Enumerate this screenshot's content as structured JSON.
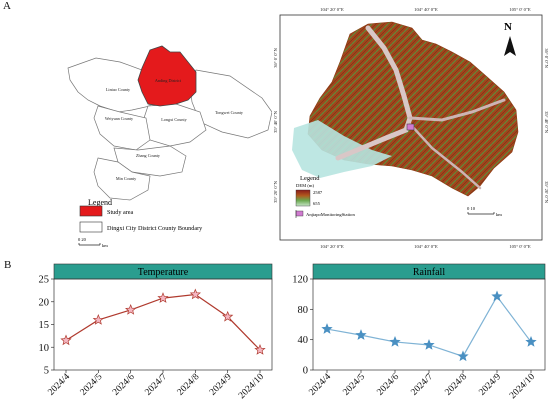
{
  "panel_a": {
    "letter": "A",
    "overview_labels": [
      {
        "key": "anding",
        "text": "Anding District"
      },
      {
        "key": "lintao",
        "text": "Lintao County"
      },
      {
        "key": "longxi",
        "text": "Longxi County"
      },
      {
        "key": "tongwei",
        "text": "Tongwei County"
      },
      {
        "key": "weiyuan",
        "text": "Weiyuan County"
      },
      {
        "key": "zhang",
        "text": "Zhang County"
      },
      {
        "key": "min",
        "text": "Min County"
      }
    ],
    "legend_title": "Legend",
    "legend_items": [
      {
        "label": "Study area",
        "color": "#e41a1c"
      },
      {
        "label": "Dingxi City District County Boundary",
        "color": "#ffffff"
      }
    ],
    "overview_scale": {
      "values": "0    20",
      "unit": "km"
    },
    "dem_map": {
      "top_ticks": [
        "104° 20′ 0″E",
        "104° 40′ 0″E",
        "105° 0′ 0″E"
      ],
      "bottom_ticks": [
        "104° 20′ 0″E",
        "104° 40′ 0″E",
        "105° 0′ 0″E"
      ],
      "left_ticks": [
        "36° 0′ 0″N",
        "35° 40′ 0″N",
        "35° 20′ 0″N"
      ],
      "right_ticks": [
        "36° 0′ 0″N",
        "35° 40′ 0″N",
        "35° 20′ 0″N"
      ],
      "north": "N",
      "legend_title": "Legend",
      "dem_label": "DEM (m)",
      "dem_high": "2587",
      "dem_low": "655",
      "station_label": "AnjiapoMonitoringStation",
      "scale": {
        "values": "0      10",
        "unit": "km"
      }
    }
  },
  "panel_b": {
    "letter": "B"
  },
  "colors": {
    "chart_header": "#2a9d8f",
    "temp_line": "#b03a2e",
    "rain_line": "#7fb3d5",
    "star_fill": "#f4b6c2",
    "rain_star": "#4a90c2"
  },
  "chart_data": [
    {
      "type": "line",
      "title": "Temperature",
      "categories": [
        "2024/4",
        "2024/5",
        "2024/6",
        "2024/7",
        "2024/8",
        "2024/9",
        "2024/10"
      ],
      "values": [
        11.5,
        16,
        18.2,
        20.8,
        21.6,
        16.7,
        9.4
      ],
      "yticks": [
        5,
        10,
        15,
        20,
        25
      ],
      "ylim": [
        5,
        25
      ],
      "marker": "star"
    },
    {
      "type": "line",
      "title": "Rainfall",
      "categories": [
        "2024/4",
        "2024/5",
        "2024/6",
        "2024/7",
        "2024/8",
        "2024/9",
        "2024/10"
      ],
      "values": [
        54,
        46,
        37,
        33,
        18,
        97,
        37
      ],
      "yticks": [
        0,
        40,
        80,
        120
      ],
      "ylim": [
        0,
        120
      ],
      "marker": "star"
    }
  ]
}
